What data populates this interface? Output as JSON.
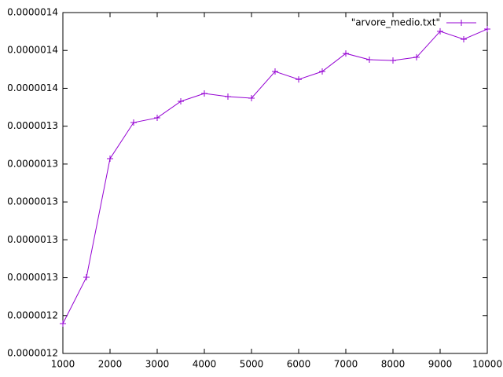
{
  "chart_data": {
    "type": "line",
    "x": [
      1000,
      1500,
      2000,
      2500,
      3000,
      3500,
      4000,
      4500,
      5000,
      5500,
      6000,
      6500,
      7000,
      7500,
      8000,
      8500,
      9000,
      9500,
      10000
    ],
    "series": [
      {
        "name": "\"arvore_medio.txt\"",
        "color": "#9400d3",
        "values": [
          1.2197e-06,
          1.2503e-06,
          1.3286e-06,
          1.3524e-06,
          1.3555e-06,
          1.3664e-06,
          1.3716e-06,
          1.3695e-06,
          1.3685e-06,
          1.3861e-06,
          1.3809e-06,
          1.3861e-06,
          1.398e-06,
          1.3939e-06,
          1.3934e-06,
          1.3955e-06,
          1.4126e-06,
          1.4074e-06,
          1.4141e-06
        ]
      }
    ],
    "xlim": [
      1000,
      10000
    ],
    "xticks": [
      1000,
      2000,
      3000,
      4000,
      5000,
      6000,
      7000,
      8000,
      9000,
      10000
    ],
    "ylim": [
      1.2e-06,
      1.425e-06
    ],
    "yticks": [
      1.2e-06,
      {
        "value": 1.225e-06,
        "label": "0.0000012"
      },
      {
        "value": 1.25e-06,
        "label": "0.0000013"
      },
      {
        "value": 1.275e-06,
        "label": "0.0000013"
      },
      1.3e-06,
      {
        "value": 1.325e-06,
        "label": "0.0000013"
      },
      {
        "value": 1.35e-06,
        "label": "0.0000013"
      },
      {
        "value": 1.375e-06,
        "label": "0.0000014"
      },
      1.4e-06,
      {
        "value": 1.425e-06,
        "label": "0.0000014"
      }
    ],
    "legend": "top-right"
  }
}
